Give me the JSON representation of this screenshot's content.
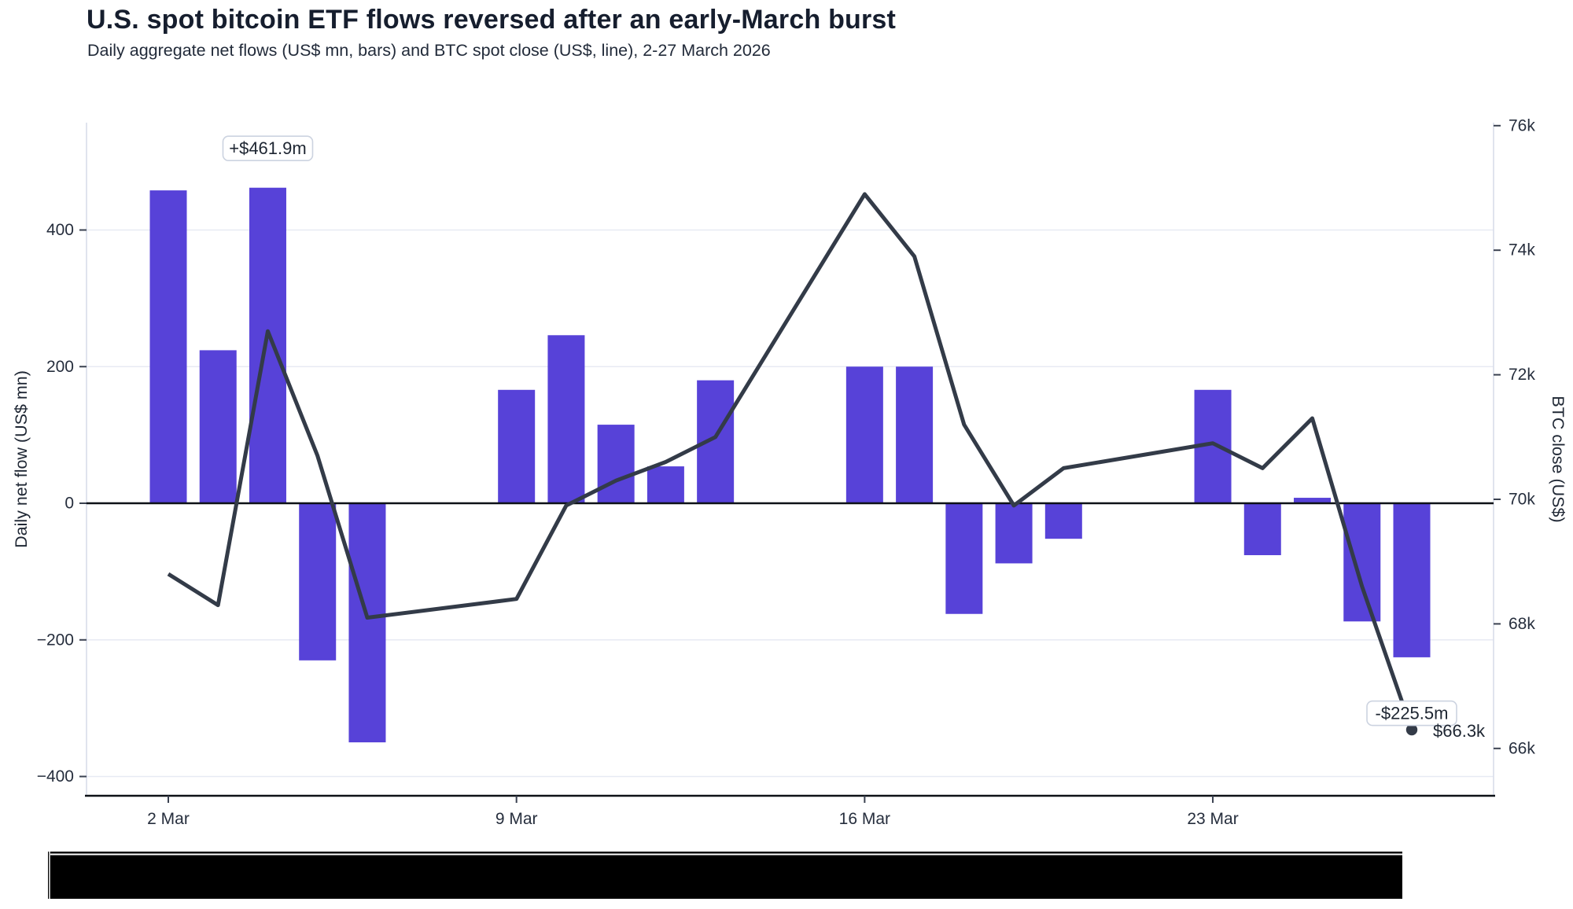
{
  "page": {
    "title": "U.S. spot bitcoin ETF flows reversed after an early-March burst",
    "subtitle": "Daily aggregate net flows (US$ mn, bars) and BTC spot close (US$, line), 2-27 March 2026"
  },
  "chart_data": {
    "type": "bar+line",
    "title": "U.S. spot bitcoin ETF flows reversed after an early-March burst",
    "subtitle": "Daily aggregate net flows (US$ mn, bars) and BTC spot close (US$, line), 2-27 March 2026",
    "x_axis": {
      "tick_labels": [
        "2 Mar",
        "9 Mar",
        "16 Mar",
        "23 Mar"
      ],
      "tick_days": [
        2,
        9,
        16,
        23
      ],
      "range_days": [
        2,
        27
      ],
      "grid": false
    },
    "left_axis": {
      "label": "Daily net flow (US$ mn)",
      "ticks": [
        400,
        200,
        0,
        -200,
        -400
      ],
      "tick_labels": [
        "400",
        "200",
        "0",
        "−200",
        "−400"
      ],
      "range": [
        -430,
        558
      ],
      "grid": true
    },
    "right_axis": {
      "label": "BTC close (US$)",
      "ticks": [
        76,
        74,
        72,
        70,
        68,
        66
      ],
      "tick_labels": [
        "76k",
        "74k",
        "72k",
        "70k",
        "68k",
        "66k"
      ],
      "range": [
        65.2,
        76.1
      ],
      "grid": false
    },
    "categories": [
      "2 Mar",
      "3 Mar",
      "4 Mar",
      "5 Mar",
      "6 Mar",
      "9 Mar",
      "10 Mar",
      "11 Mar",
      "12 Mar",
      "13 Mar",
      "16 Mar",
      "17 Mar",
      "18 Mar",
      "19 Mar",
      "20 Mar",
      "23 Mar",
      "24 Mar",
      "25 Mar",
      "26 Mar",
      "27 Mar"
    ],
    "days": [
      2,
      3,
      4,
      5,
      6,
      9,
      10,
      11,
      12,
      13,
      16,
      17,
      18,
      19,
      20,
      23,
      24,
      25,
      26,
      27
    ],
    "series": [
      {
        "name": "Daily net flow (US$ mn)",
        "type": "bar",
        "color": "#5742d8",
        "values": [
          458,
          224,
          461.9,
          -230,
          -350,
          166,
          246,
          115,
          54,
          180,
          200,
          200,
          -162,
          -88,
          -52,
          166,
          -76,
          8,
          -173,
          -225.5
        ]
      },
      {
        "name": "BTC spot close (US$ k)",
        "type": "line",
        "color": "#333b48",
        "values": [
          68.8,
          68.3,
          72.7,
          70.7,
          68.1,
          68.4,
          69.9,
          70.3,
          70.6,
          71.0,
          74.9,
          73.9,
          71.2,
          69.9,
          70.5,
          70.9,
          70.5,
          71.3,
          68.6,
          66.3
        ]
      }
    ],
    "annotations": [
      {
        "id": "max-flow",
        "text": "+$461.9m",
        "day": 4,
        "style": "box"
      },
      {
        "id": "last-flow",
        "text": "-$225.5m",
        "day": 27,
        "style": "box"
      },
      {
        "id": "last-btc",
        "text": "$66.3k",
        "day": 27,
        "style": "text"
      }
    ],
    "legend_position": "none"
  },
  "colors": {
    "bar": "#5742d8",
    "line": "#333b48",
    "grid": "#e7eaf3",
    "spine": "#d9ddea",
    "axis_black": "#0d1117",
    "tick": "#3a4150",
    "annotation_border": "#ccd3e0",
    "annotation_bg": "#ffffff",
    "redaction": "#000000"
  }
}
